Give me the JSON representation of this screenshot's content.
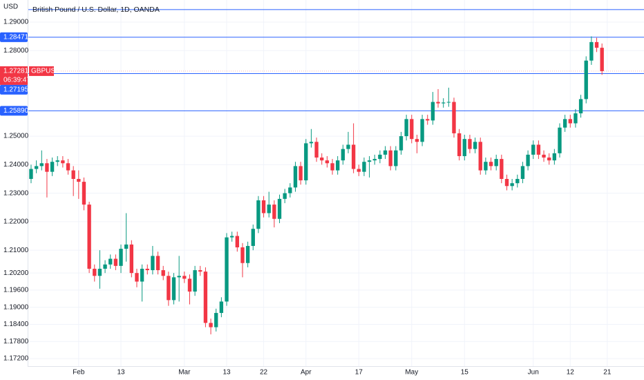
{
  "chart_data": {
    "type": "candlestick",
    "title": "British Pound / U.S. Dollar, 1D, OANDA",
    "currency": "USD",
    "symbol": "GBPUSD",
    "countdown": "06:39:47",
    "up_color": "#089981",
    "down_color": "#f23645",
    "level_color": "#2962ff",
    "grid": true,
    "xlim": [
      -0.65,
      115.95
    ],
    "xticks": [
      {
        "value": 9,
        "label": "Feb"
      },
      {
        "value": 17,
        "label": "13"
      },
      {
        "value": 29,
        "label": "Mar"
      },
      {
        "value": 37,
        "label": "13"
      },
      {
        "value": 44,
        "label": "22"
      },
      {
        "value": 52,
        "label": "Apr"
      },
      {
        "value": 62,
        "label": "17"
      },
      {
        "value": 72,
        "label": "May"
      },
      {
        "value": 82,
        "label": "15"
      },
      {
        "value": 95,
        "label": "Jun"
      },
      {
        "value": 102,
        "label": "12"
      },
      {
        "value": 109,
        "label": "21"
      }
    ],
    "ylim": [
      1.16933,
      1.29775
    ],
    "yticks": [
      {
        "value": 1.29,
        "label": "1.29000"
      },
      {
        "value": 1.28,
        "label": "1.28000"
      },
      {
        "value": 1.25,
        "label": "1.25000"
      },
      {
        "value": 1.24,
        "label": "1.24000"
      },
      {
        "value": 1.23,
        "label": "1.23000"
      },
      {
        "value": 1.22,
        "label": "1.22000"
      },
      {
        "value": 1.21,
        "label": "1.21000"
      },
      {
        "value": 1.202,
        "label": "1.20200"
      },
      {
        "value": 1.196,
        "label": "1.19600"
      },
      {
        "value": 1.19,
        "label": "1.19000"
      },
      {
        "value": 1.184,
        "label": "1.18400"
      },
      {
        "value": 1.178,
        "label": "1.17800"
      },
      {
        "value": 1.172,
        "label": "1.17200"
      }
    ],
    "levels": [
      1.2944,
      {
        "value": 1.28471,
        "label": "1.28471"
      },
      {
        "value": 1.27195,
        "label": "1.27195"
      },
      {
        "value": 1.2589,
        "label": "1.25890"
      }
    ],
    "last_price": {
      "value": 1.27281,
      "label": "1.27281"
    },
    "open": [
      1.235,
      1.2385,
      1.2395,
      1.2405,
      1.2375,
      1.241,
      1.2415,
      1.2405,
      1.238,
      1.235,
      1.234,
      1.226,
      1.2035,
      1.201,
      1.2035,
      1.205,
      1.207,
      1.2045,
      1.2105,
      1.212,
      1.202,
      1.199,
      1.2035,
      1.203,
      1.208,
      1.203,
      1.201,
      1.1925,
      1.2005,
      1.201,
      1.2,
      1.1955,
      1.203,
      1.2025,
      1.1845,
      1.183,
      1.188,
      1.192,
      1.2145,
      1.215,
      1.211,
      1.2055,
      1.2115,
      1.2175,
      1.2275,
      1.223,
      1.226,
      1.221,
      1.228,
      1.23,
      1.232,
      1.2395,
      1.2345,
      1.2475,
      1.248,
      1.2425,
      1.2415,
      1.2405,
      1.238,
      1.2415,
      1.2455,
      1.247,
      1.2385,
      1.2375,
      1.241,
      1.2415,
      1.242,
      1.2435,
      1.245,
      1.2395,
      1.245,
      1.25,
      1.256,
      1.249,
      1.248,
      1.256,
      1.2555,
      1.262,
      1.2615,
      1.2618,
      1.262,
      1.251,
      1.243,
      1.249,
      1.2455,
      1.248,
      1.238,
      1.241,
      1.2395,
      1.242,
      1.235,
      1.2325,
      1.2335,
      1.235,
      1.2395,
      1.2435,
      1.247,
      1.2435,
      1.2425,
      1.2415,
      1.244,
      1.253,
      1.256,
      1.2545,
      1.258,
      1.263,
      1.2765,
      1.283,
      1.281
    ],
    "high": [
      1.24,
      1.2415,
      1.245,
      1.242,
      1.2425,
      1.243,
      1.243,
      1.242,
      1.2395,
      1.238,
      1.2355,
      1.227,
      1.205,
      1.21,
      1.2065,
      1.2085,
      1.2085,
      1.212,
      1.223,
      1.2135,
      1.2035,
      1.205,
      1.205,
      1.2115,
      1.2095,
      1.2045,
      1.2025,
      1.202,
      1.208,
      1.2025,
      1.2015,
      1.2045,
      1.2045,
      1.204,
      1.186,
      1.1895,
      1.1935,
      1.216,
      1.2165,
      1.2165,
      1.2125,
      1.213,
      1.219,
      1.229,
      1.229,
      1.2305,
      1.2275,
      1.2295,
      1.2315,
      1.2335,
      1.241,
      1.241,
      1.249,
      1.2525,
      1.2495,
      1.244,
      1.243,
      1.242,
      1.243,
      1.247,
      1.2515,
      1.2545,
      1.24,
      1.2425,
      1.243,
      1.2435,
      1.245,
      1.2465,
      1.2465,
      1.2465,
      1.2515,
      1.2575,
      1.2575,
      1.2505,
      1.2575,
      1.2575,
      1.2655,
      1.2665,
      1.2633,
      1.267,
      1.2635,
      1.2525,
      1.2505,
      1.2505,
      1.2495,
      1.2495,
      1.2425,
      1.2425,
      1.2435,
      1.2435,
      1.2365,
      1.235,
      1.2365,
      1.241,
      1.245,
      1.2485,
      1.2485,
      1.245,
      1.244,
      1.2455,
      1.2545,
      1.2575,
      1.2575,
      1.2595,
      1.2645,
      1.278,
      1.285,
      1.2845,
      1.2825
    ],
    "low": [
      1.2335,
      1.237,
      1.238,
      1.2285,
      1.236,
      1.2395,
      1.239,
      1.2365,
      1.229,
      1.228,
      1.224,
      1.202,
      1.199,
      1.1965,
      1.202,
      1.2035,
      1.203,
      1.202,
      1.206,
      1.2005,
      1.197,
      1.192,
      1.2015,
      1.2015,
      1.2015,
      1.1995,
      1.1905,
      1.191,
      1.192,
      1.1985,
      1.191,
      1.194,
      1.201,
      1.183,
      1.1805,
      1.1815,
      1.1865,
      1.1905,
      1.213,
      1.2095,
      1.2005,
      1.204,
      1.21,
      1.216,
      1.2215,
      1.2215,
      1.218,
      1.2195,
      1.2265,
      1.2285,
      1.2305,
      1.233,
      1.233,
      1.246,
      1.241,
      1.24,
      1.239,
      1.2365,
      1.2365,
      1.24,
      1.244,
      1.237,
      1.236,
      1.236,
      1.2355,
      1.24,
      1.2405,
      1.242,
      1.238,
      1.238,
      1.2435,
      1.2485,
      1.2475,
      1.244,
      1.2465,
      1.254,
      1.254,
      1.26,
      1.26,
      1.2603,
      1.2495,
      1.2415,
      1.2415,
      1.244,
      1.244,
      1.2365,
      1.2365,
      1.238,
      1.238,
      1.2335,
      1.231,
      1.231,
      1.232,
      1.2335,
      1.238,
      1.242,
      1.242,
      1.241,
      1.24,
      1.24,
      1.2425,
      1.2515,
      1.253,
      1.253,
      1.2565,
      1.2615,
      1.275,
      1.2795,
      1.2715
    ],
    "close": [
      1.2385,
      1.2395,
      1.2405,
      1.2375,
      1.241,
      1.2415,
      1.2405,
      1.238,
      1.235,
      1.234,
      1.226,
      1.2035,
      1.201,
      1.2035,
      1.205,
      1.207,
      1.2045,
      1.2105,
      1.212,
      1.202,
      1.199,
      1.2035,
      1.203,
      1.208,
      1.203,
      1.201,
      1.1925,
      1.2005,
      1.201,
      1.2,
      1.1955,
      1.203,
      1.2025,
      1.1845,
      1.183,
      1.188,
      1.192,
      1.2145,
      1.215,
      1.211,
      1.2055,
      1.2115,
      1.2175,
      1.2275,
      1.223,
      1.226,
      1.221,
      1.228,
      1.23,
      1.232,
      1.2395,
      1.2345,
      1.2475,
      1.248,
      1.2425,
      1.2415,
      1.2405,
      1.238,
      1.2415,
      1.2455,
      1.247,
      1.2385,
      1.2375,
      1.241,
      1.2415,
      1.242,
      1.2435,
      1.245,
      1.2395,
      1.245,
      1.25,
      1.256,
      1.249,
      1.248,
      1.256,
      1.2555,
      1.262,
      1.2615,
      1.2618,
      1.262,
      1.251,
      1.243,
      1.249,
      1.2455,
      1.248,
      1.238,
      1.241,
      1.2395,
      1.242,
      1.235,
      1.2325,
      1.2335,
      1.235,
      1.2395,
      1.2435,
      1.247,
      1.2435,
      1.2425,
      1.2415,
      1.244,
      1.253,
      1.256,
      1.2545,
      1.258,
      1.263,
      1.2765,
      1.283,
      1.281,
      1.2728
    ]
  }
}
